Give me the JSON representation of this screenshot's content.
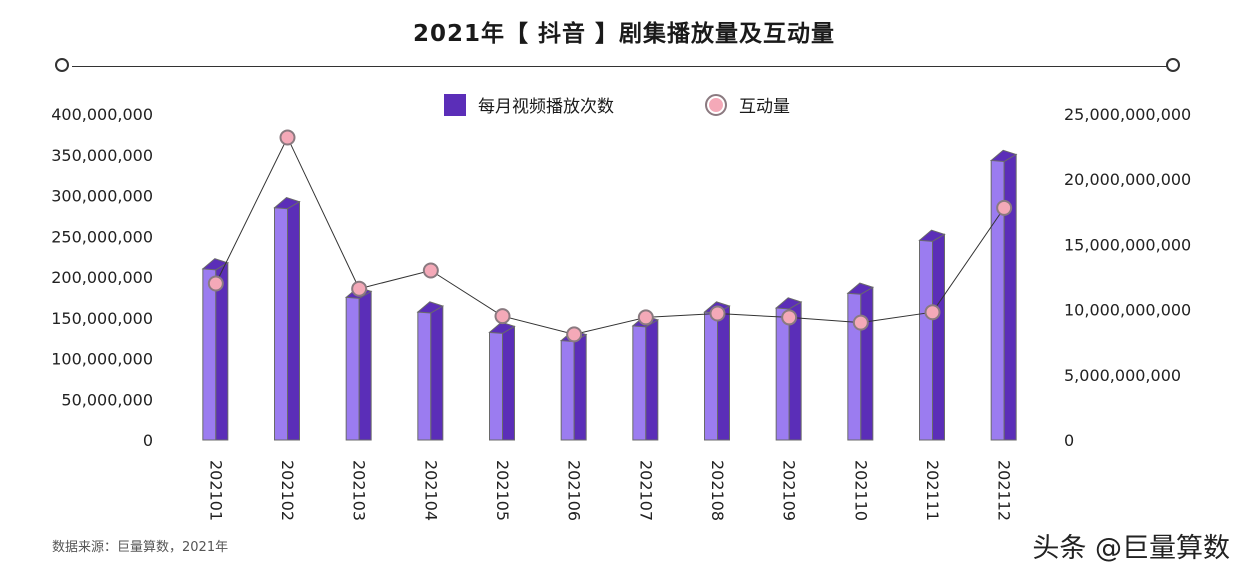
{
  "page": {
    "title": "2021年【 抖音 】剧集播放量及互动量",
    "source": "数据来源：巨量算数，2021年",
    "watermark": "头条 @巨量算数"
  },
  "colors": {
    "bar_front": "#9b7cf0",
    "bar_side": "#5b2eb8",
    "bar_top": "#5b2eb8",
    "point_fill": "#f4a9b8",
    "line": "#333333"
  },
  "chart_data": {
    "type": "bar",
    "categories": [
      "202101",
      "202102",
      "202103",
      "202104",
      "202105",
      "202106",
      "202107",
      "202108",
      "202109",
      "202110",
      "202111",
      "202112"
    ],
    "series": [
      {
        "name": "每月视频播放次数",
        "axis": "left",
        "type": "bar",
        "values": [
          210000000,
          285000000,
          175000000,
          157000000,
          132000000,
          122000000,
          140000000,
          157000000,
          162000000,
          180000000,
          245000000,
          343000000
        ]
      },
      {
        "name": "互动量",
        "axis": "right",
        "type": "line",
        "values": [
          12000000000,
          23200000000,
          11600000000,
          13000000000,
          9500000000,
          8100000000,
          9400000000,
          9700000000,
          9400000000,
          9000000000,
          9800000000,
          17800000000
        ]
      }
    ],
    "left_axis": {
      "ylim": [
        0,
        400000000
      ],
      "ticks": [
        "0",
        "50,000,000",
        "100,000,000",
        "150,000,000",
        "200,000,000",
        "250,000,000",
        "300,000,000",
        "350,000,000",
        "400,000,000"
      ]
    },
    "right_axis": {
      "ylim": [
        0,
        25000000000
      ],
      "ticks": [
        "0",
        "5,000,000,000",
        "10,000,000,000",
        "15,000,000,000",
        "20,000,000,000",
        "25,000,000,000"
      ]
    },
    "legend_position": "top-center",
    "grid": false
  }
}
